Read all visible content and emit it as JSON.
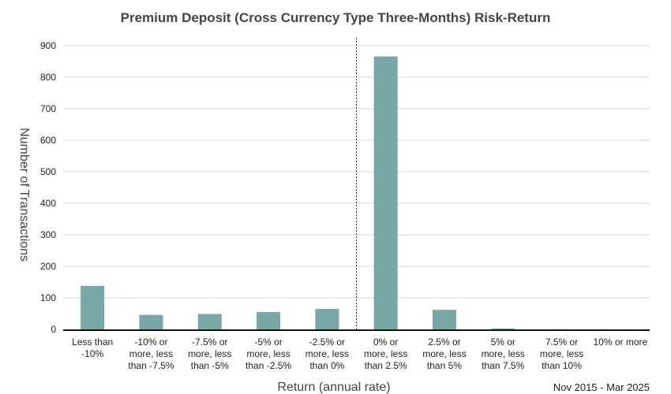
{
  "chart_data": {
    "type": "bar",
    "title": "Premium Deposit (Cross Currency Type Three-Months) Risk-Return",
    "xlabel": "Return (annual rate)",
    "ylabel": "Number of Transactions",
    "period": "Nov 2015 - Mar 2025",
    "categories": [
      [
        "Less than",
        "-10%"
      ],
      [
        "-10% or",
        "more, less",
        "than -7.5%"
      ],
      [
        "-7.5% or",
        "more, less",
        "than -5%"
      ],
      [
        "-5% or",
        "more, less",
        "than -2.5%"
      ],
      [
        "-2.5% or",
        "more, less",
        "than 0%"
      ],
      [
        "0% or",
        "more, less",
        "than 2.5%"
      ],
      [
        "2.5% or",
        "more, less",
        "than 5%"
      ],
      [
        "5% or",
        "more, less",
        "than 7.5%"
      ],
      [
        "7.5% or",
        "more, less",
        "than 10%"
      ],
      [
        "10% or more"
      ]
    ],
    "values": [
      138,
      46,
      49,
      55,
      65,
      866,
      62,
      3,
      0,
      0
    ],
    "ylim": [
      0,
      900
    ],
    "yticks": [
      0,
      100,
      200,
      300,
      400,
      500,
      600,
      700,
      800,
      900
    ],
    "grid": true,
    "bar_color": "#79a6a7",
    "reference_line_between": [
      4,
      5
    ]
  }
}
